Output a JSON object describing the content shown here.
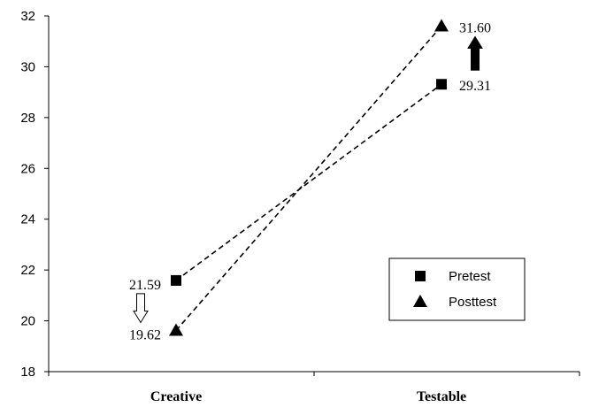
{
  "chart_data": {
    "type": "line",
    "categories": [
      "Creative",
      "Testable"
    ],
    "series": [
      {
        "name": "Pretest",
        "marker": "square",
        "values": [
          21.59,
          29.31
        ],
        "labels": [
          "21.59",
          "29.31"
        ],
        "color": "#000000"
      },
      {
        "name": "Posttest",
        "marker": "triangle",
        "values": [
          19.62,
          31.6
        ],
        "labels": [
          "19.62",
          "31.60"
        ],
        "color": "#000000"
      }
    ],
    "title": "",
    "xlabel": "",
    "ylabel": "",
    "ylim": [
      18,
      32
    ],
    "yticks": [
      "18",
      "20",
      "22",
      "24",
      "26",
      "28",
      "30",
      "32"
    ],
    "grid": false,
    "line_style": "dashed",
    "legend_position": "bottom-right",
    "change_arrows": [
      {
        "category": "Creative",
        "direction": "down",
        "style": "hollow"
      },
      {
        "category": "Testable",
        "direction": "up",
        "style": "filled"
      }
    ]
  }
}
